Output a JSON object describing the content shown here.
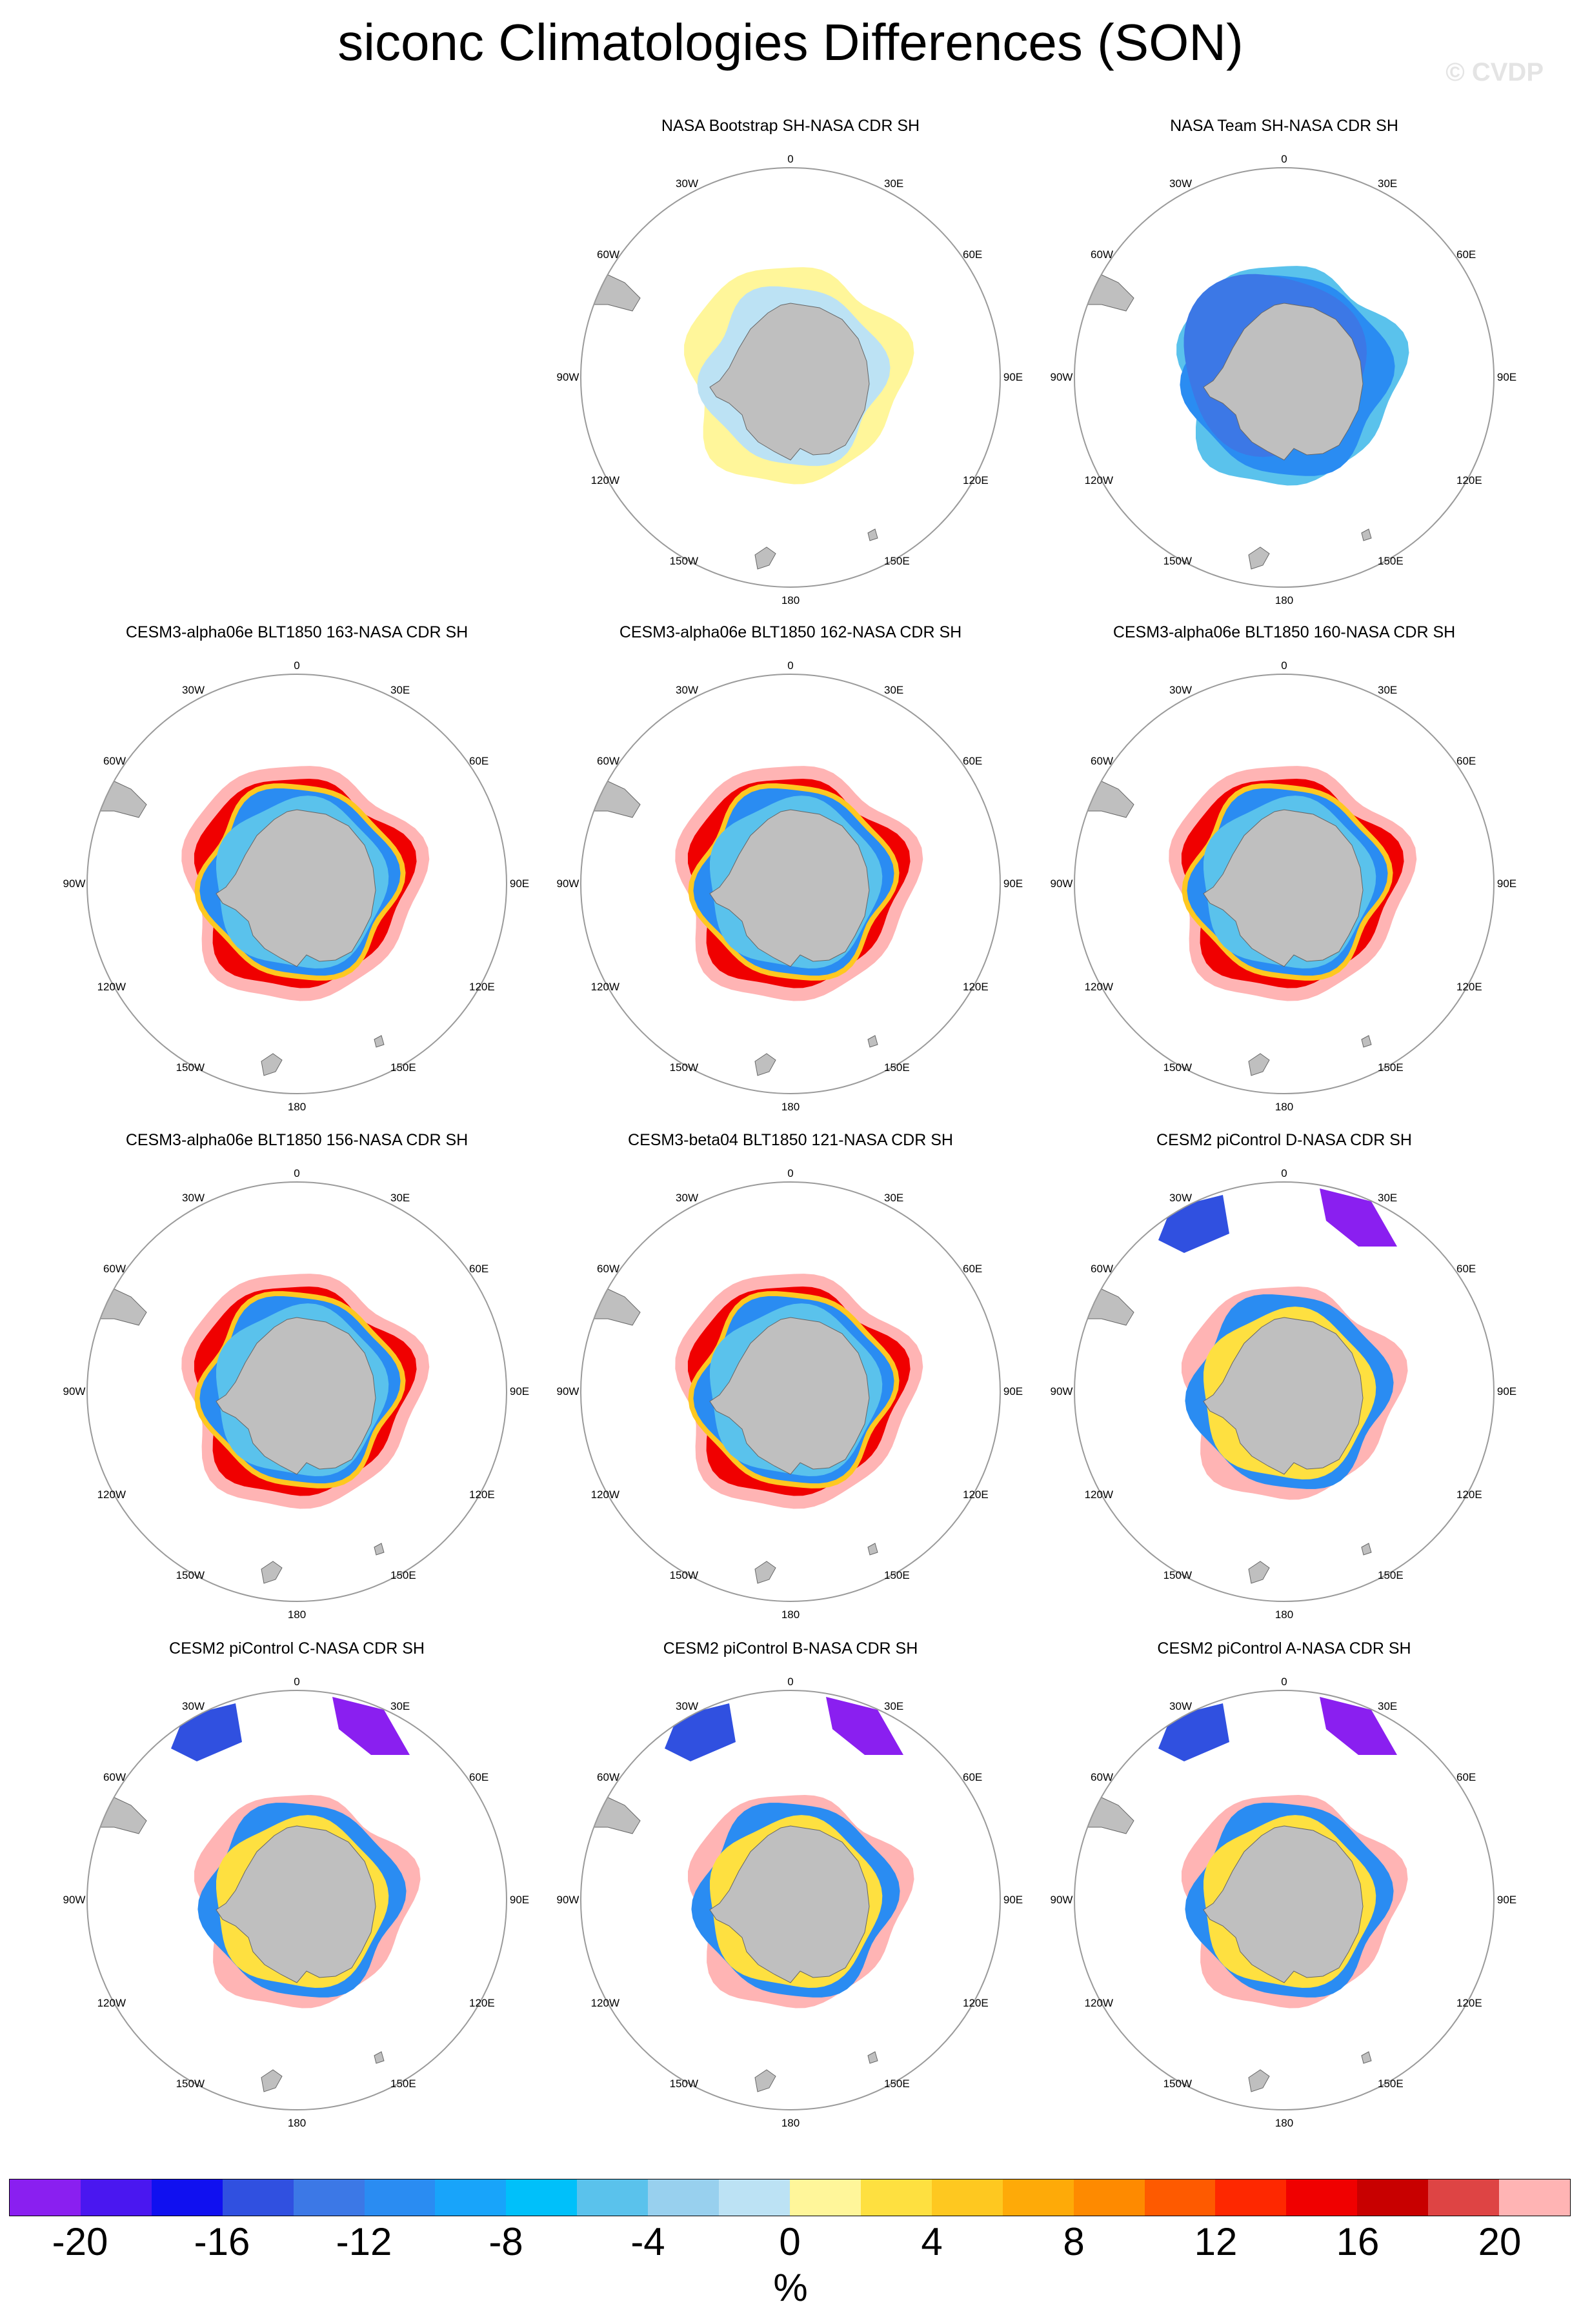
{
  "title": "siconc Climatologies Differences (SON)",
  "watermark": "© CVDP",
  "map_labels": {
    "top": "0",
    "bottom": "180",
    "lon_30w": "30W",
    "lon_30e": "30E",
    "lon_60w": "60W",
    "lon_60e": "60E",
    "lon_90w": "90W",
    "lon_90e": "90E",
    "lon_120w": "120W",
    "lon_120e": "120E",
    "lon_150w": "150W",
    "lon_150e": "150E"
  },
  "panels": [
    {
      "title": "NASA Bootstrap SH-NASA CDR SH",
      "pattern": "bootstrap"
    },
    {
      "title": "NASA Team SH-NASA CDR SH",
      "pattern": "team"
    },
    {
      "title": "CESM3-alpha06e BLT1850 163-NASA CDR SH",
      "pattern": "cesm3"
    },
    {
      "title": "CESM3-alpha06e BLT1850 162-NASA CDR SH",
      "pattern": "cesm3"
    },
    {
      "title": "CESM3-alpha06e BLT1850 160-NASA CDR SH",
      "pattern": "cesm3"
    },
    {
      "title": "CESM3-alpha06e BLT1850 156-NASA CDR SH",
      "pattern": "cesm3"
    },
    {
      "title": "CESM3-beta04 BLT1850 121-NASA CDR SH",
      "pattern": "cesm3"
    },
    {
      "title": "CESM2 piControl D-NASA CDR SH",
      "pattern": "cesm2"
    },
    {
      "title": "CESM2 piControl C-NASA CDR SH",
      "pattern": "cesm2"
    },
    {
      "title": "CESM2 piControl B-NASA CDR SH",
      "pattern": "cesm2"
    },
    {
      "title": "CESM2 piControl A-NASA CDR SH",
      "pattern": "cesm2"
    }
  ],
  "colorbar": {
    "colors": [
      "#8a1ff0",
      "#4a17f0",
      "#1010f0",
      "#3050e0",
      "#3c78e6",
      "#2a8cf2",
      "#18a4fa",
      "#00c0fa",
      "#5ac2ec",
      "#98d0ee",
      "#bce2f4",
      "#fff69a",
      "#fee040",
      "#fec820",
      "#feaa08",
      "#fe8a00",
      "#fe5a00",
      "#fe2800",
      "#f00000",
      "#c80000",
      "#de4444",
      "#ffb4b4"
    ],
    "tick_labels": [
      "-20",
      "-16",
      "-12",
      "-8",
      "-4",
      "0",
      "4",
      "8",
      "12",
      "16",
      "20"
    ],
    "units": "%"
  }
}
